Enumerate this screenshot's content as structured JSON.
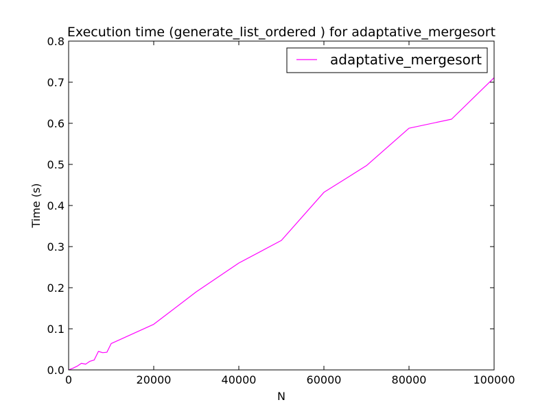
{
  "chart_data": {
    "type": "line",
    "title": "Execution time (generate_list_ordered ) for adaptative_mergesort",
    "xlabel": "N",
    "ylabel": "Time (s)",
    "xlim": [
      0,
      100000
    ],
    "ylim": [
      0,
      0.8
    ],
    "x_ticks": [
      "0",
      "20000",
      "40000",
      "60000",
      "80000",
      "100000"
    ],
    "y_ticks": [
      "0.0",
      "0.1",
      "0.2",
      "0.3",
      "0.4",
      "0.5",
      "0.6",
      "0.7",
      "0.8"
    ],
    "grid": false,
    "legend_position": "top-right",
    "series": [
      {
        "name": "adaptative_mergesort",
        "color": "#ff00ff",
        "x": [
          0,
          1000,
          2000,
          3000,
          4000,
          5000,
          6000,
          7000,
          8000,
          9000,
          10000,
          20000,
          30000,
          40000,
          50000,
          60000,
          70000,
          80000,
          90000,
          100000
        ],
        "y": [
          0.0,
          0.004,
          0.009,
          0.016,
          0.014,
          0.021,
          0.024,
          0.045,
          0.042,
          0.043,
          0.064,
          0.111,
          0.19,
          0.26,
          0.315,
          0.432,
          0.497,
          0.588,
          0.61,
          0.711
        ]
      }
    ]
  }
}
